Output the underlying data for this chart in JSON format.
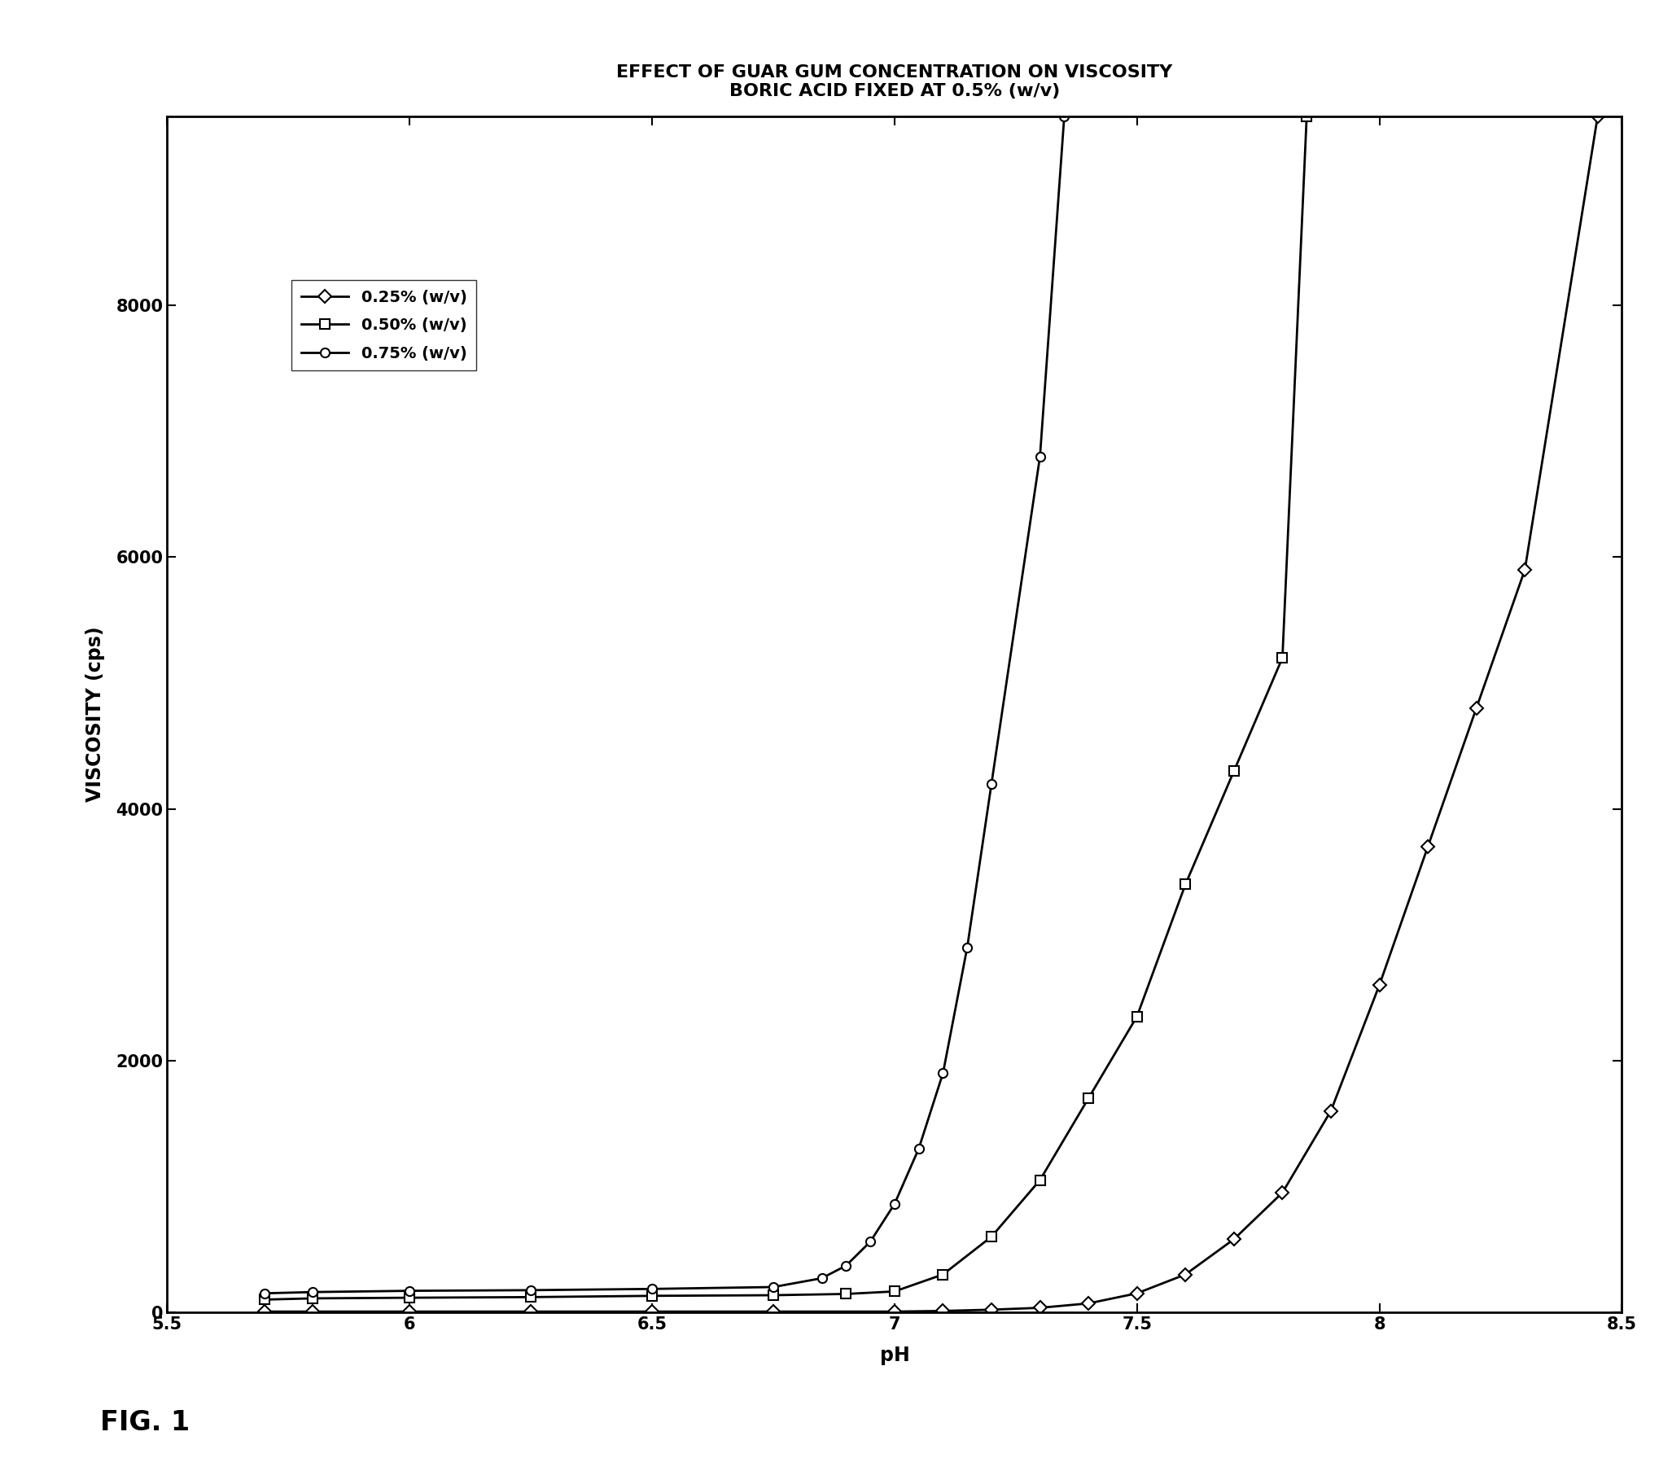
{
  "title_line1": "EFFECT OF GUAR GUM CONCENTRATION ON VISCOSITY",
  "title_line2": "BORIC ACID FIXED AT 0.5% (w/v)",
  "xlabel": "pH",
  "ylabel": "VISCOSITY (cps)",
  "xlim": [
    5.5,
    8.5
  ],
  "ylim": [
    0,
    9500
  ],
  "yticks": [
    0,
    2000,
    4000,
    6000,
    8000
  ],
  "xticks": [
    5.5,
    6.0,
    6.5,
    7.0,
    7.5,
    8.0,
    8.5
  ],
  "fig_label": "FIG. 1",
  "series": [
    {
      "label": "0.25% (w/v)",
      "marker": "D",
      "markersize": 8,
      "linewidth": 2.0,
      "color": "#000000",
      "markerfacecolor": "white",
      "markeredgewidth": 1.5,
      "x": [
        5.7,
        5.8,
        6.0,
        6.25,
        6.5,
        6.75,
        7.0,
        7.1,
        7.2,
        7.3,
        7.4,
        7.5,
        7.6,
        7.7,
        7.8,
        7.9,
        8.0,
        8.1,
        8.2,
        8.3,
        8.45
      ],
      "y": [
        5,
        5,
        5,
        5,
        5,
        5,
        5,
        10,
        20,
        35,
        70,
        150,
        300,
        580,
        950,
        1600,
        2600,
        3700,
        4800,
        5900,
        9500
      ]
    },
    {
      "label": "0.50% (w/v)",
      "marker": "s",
      "markersize": 8,
      "linewidth": 2.0,
      "color": "#000000",
      "markerfacecolor": "white",
      "markeredgewidth": 1.5,
      "x": [
        5.7,
        5.8,
        6.0,
        6.25,
        6.5,
        6.75,
        6.9,
        7.0,
        7.1,
        7.2,
        7.3,
        7.4,
        7.5,
        7.6,
        7.7,
        7.8,
        7.85
      ],
      "y": [
        100,
        110,
        115,
        120,
        130,
        135,
        145,
        165,
        300,
        600,
        1050,
        1700,
        2350,
        3400,
        4300,
        5200,
        9500
      ]
    },
    {
      "label": "0.75% (w/v)",
      "marker": "o",
      "markersize": 8,
      "linewidth": 2.0,
      "color": "#000000",
      "markerfacecolor": "white",
      "markeredgewidth": 1.5,
      "x": [
        5.7,
        5.8,
        6.0,
        6.25,
        6.5,
        6.75,
        6.85,
        6.9,
        6.95,
        7.0,
        7.05,
        7.1,
        7.15,
        7.2,
        7.3,
        7.35
      ],
      "y": [
        150,
        160,
        170,
        175,
        185,
        200,
        270,
        370,
        560,
        860,
        1300,
        1900,
        2900,
        4200,
        6800,
        9500
      ]
    }
  ],
  "background_color": "#ffffff",
  "title_fontsize": 16,
  "axis_label_fontsize": 17,
  "tick_fontsize": 15,
  "legend_fontsize": 14,
  "fig_label_fontsize": 24
}
